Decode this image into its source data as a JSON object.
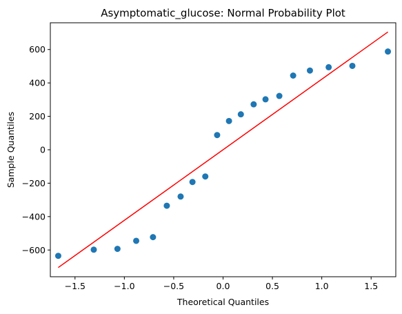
{
  "chart_data": {
    "type": "scatter",
    "title": "Asymptomatic_glucose: Normal Probability Plot",
    "xlabel": "Theoretical Quantiles",
    "ylabel": "Sample Quantiles",
    "xlim": [
      -1.75,
      1.75
    ],
    "ylim": [
      -760,
      760
    ],
    "xticks": [
      -1.5,
      -1.0,
      -0.5,
      0.0,
      0.5,
      1.0,
      1.5
    ],
    "xtick_labels": [
      "−1.5",
      "−1.0",
      "−0.5",
      "0.0",
      "0.5",
      "1.0",
      "1.5"
    ],
    "yticks": [
      -600,
      -400,
      -200,
      0,
      200,
      400,
      600
    ],
    "ytick_labels": [
      "−600",
      "−400",
      "−200",
      "0",
      "200",
      "400",
      "600"
    ],
    "grid": false,
    "marker_color": "#1f77b4",
    "line_color": "#ff0000",
    "points": [
      {
        "x": -1.67,
        "y": -635
      },
      {
        "x": -1.31,
        "y": -598
      },
      {
        "x": -1.07,
        "y": -593
      },
      {
        "x": -0.88,
        "y": -545
      },
      {
        "x": -0.71,
        "y": -523
      },
      {
        "x": -0.57,
        "y": -335
      },
      {
        "x": -0.43,
        "y": -280
      },
      {
        "x": -0.31,
        "y": -193
      },
      {
        "x": -0.18,
        "y": -160
      },
      {
        "x": -0.06,
        "y": 88
      },
      {
        "x": 0.06,
        "y": 172
      },
      {
        "x": 0.18,
        "y": 212
      },
      {
        "x": 0.31,
        "y": 272
      },
      {
        "x": 0.43,
        "y": 302
      },
      {
        "x": 0.57,
        "y": 322
      },
      {
        "x": 0.71,
        "y": 444
      },
      {
        "x": 0.88,
        "y": 474
      },
      {
        "x": 1.07,
        "y": 494
      },
      {
        "x": 1.31,
        "y": 502
      },
      {
        "x": 1.67,
        "y": 588
      }
    ],
    "reference_line": [
      {
        "x": -1.67,
        "y": -705
      },
      {
        "x": 1.67,
        "y": 705
      }
    ]
  }
}
